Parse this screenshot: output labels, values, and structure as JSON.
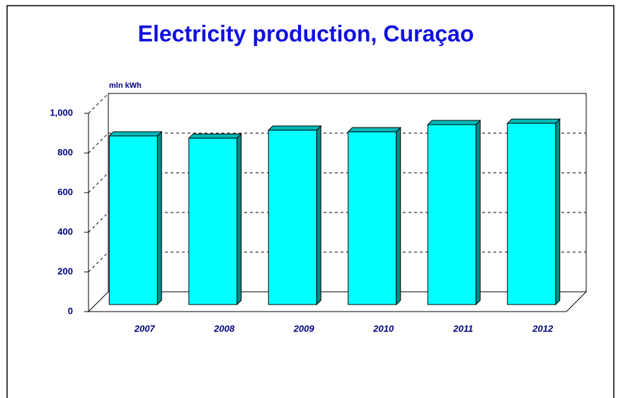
{
  "chart_data": {
    "type": "bar3d",
    "title": "Electricity production, Curaçao",
    "y_axis_label": "mln kWh",
    "categories": [
      "2007",
      "2008",
      "2009",
      "2010",
      "2011",
      "2012"
    ],
    "values": [
      850,
      839,
      879,
      871,
      907,
      914
    ],
    "color": "#00ffff",
    "ylim": [
      0,
      1000
    ],
    "yticks": [
      0,
      200,
      400,
      600,
      800,
      {
        "value": 1000,
        "label": "1,000"
      }
    ],
    "grid": true
  }
}
